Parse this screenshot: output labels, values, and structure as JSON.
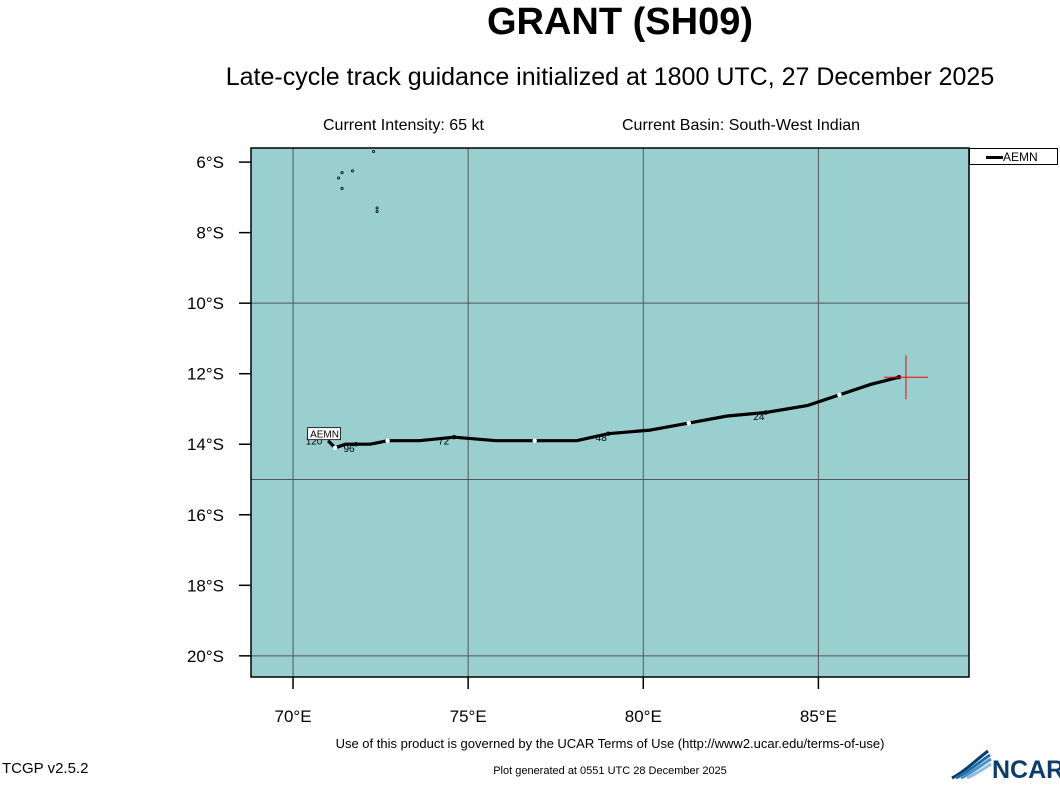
{
  "title": "GRANT (SH09)",
  "subtitle": "Late-cycle track guidance initialized at 1800 UTC, 27 December 2025",
  "current_intensity": "Current Intensity: 65 kt",
  "current_basin": "Current Basin: South-West Indian",
  "terms_text": "Use of this product is governed by the UCAR Terms of Use (http://www2.ucar.edu/terms-of-use)",
  "version_text": "TCGP v2.5.2",
  "plot_generated_text": "Plot generated at 0551 UTC  28 December 2025",
  "logo_text": "NCAR",
  "colors": {
    "ocean": "#99cfcf",
    "gridline": "#555555",
    "track": "#000000",
    "current_position": "#ff0000"
  },
  "map": {
    "lon_range": [
      68.8,
      89.3
    ],
    "lat_range": [
      -20.6,
      -5.6
    ],
    "x_ticks": [
      {
        "value": 70,
        "label": "70°E"
      },
      {
        "value": 75,
        "label": "75°E"
      },
      {
        "value": 80,
        "label": "80°E"
      },
      {
        "value": 85,
        "label": "85°E"
      }
    ],
    "y_ticks": [
      {
        "value": -6,
        "label": "6°S"
      },
      {
        "value": -8,
        "label": "8°S"
      },
      {
        "value": -10,
        "label": "10°S"
      },
      {
        "value": -12,
        "label": "12°S"
      },
      {
        "value": -14,
        "label": "14°S"
      },
      {
        "value": -16,
        "label": "16°S"
      },
      {
        "value": -18,
        "label": "18°S"
      },
      {
        "value": -20,
        "label": "20°S"
      }
    ],
    "grid_lon": [
      70,
      75,
      80,
      85
    ],
    "grid_lat": [
      -10,
      -15,
      -20
    ]
  },
  "current_position": {
    "lon": 87.5,
    "lat": -12.1
  },
  "legend": {
    "entries": [
      {
        "name": "AEMN"
      }
    ]
  },
  "tracks": [
    {
      "name": "AEMN",
      "points": [
        {
          "lon": 87.3,
          "lat": -12.1
        },
        {
          "lon": 86.5,
          "lat": -12.3
        },
        {
          "lon": 85.6,
          "lat": -12.6
        },
        {
          "lon": 84.7,
          "lat": -12.9
        },
        {
          "lon": 83.5,
          "lat": -13.1
        },
        {
          "lon": 82.4,
          "lat": -13.2
        },
        {
          "lon": 81.3,
          "lat": -13.4
        },
        {
          "lon": 80.2,
          "lat": -13.6
        },
        {
          "lon": 79.0,
          "lat": -13.7
        },
        {
          "lon": 78.1,
          "lat": -13.9
        },
        {
          "lon": 76.9,
          "lat": -13.9
        },
        {
          "lon": 75.8,
          "lat": -13.9
        },
        {
          "lon": 74.6,
          "lat": -13.8
        },
        {
          "lon": 73.6,
          "lat": -13.9
        },
        {
          "lon": 72.7,
          "lat": -13.9
        },
        {
          "lon": 72.2,
          "lat": -14.0
        },
        {
          "lon": 71.8,
          "lat": -14.0
        },
        {
          "lon": 71.5,
          "lat": -14.0
        },
        {
          "lon": 71.2,
          "lat": -14.1
        },
        {
          "lon": 71.0,
          "lat": -13.9
        }
      ],
      "point_markers": [
        {
          "lon": 87.3,
          "lat": -12.1,
          "style": "black"
        },
        {
          "lon": 85.6,
          "lat": -12.6,
          "style": "white"
        },
        {
          "lon": 83.5,
          "lat": -13.1,
          "style": "black"
        },
        {
          "lon": 81.3,
          "lat": -13.4,
          "style": "white"
        },
        {
          "lon": 79.0,
          "lat": -13.7,
          "style": "black"
        },
        {
          "lon": 76.9,
          "lat": -13.9,
          "style": "white"
        },
        {
          "lon": 74.6,
          "lat": -13.8,
          "style": "black"
        },
        {
          "lon": 72.7,
          "lat": -13.9,
          "style": "white"
        },
        {
          "lon": 71.8,
          "lat": -14.0,
          "style": "black"
        },
        {
          "lon": 71.2,
          "lat": -14.1,
          "style": "white"
        }
      ],
      "hour_labels": [
        {
          "text": "24",
          "lon": 83.3,
          "lat": -13.2
        },
        {
          "text": "48",
          "lon": 78.8,
          "lat": -13.8
        },
        {
          "text": "72",
          "lon": 74.3,
          "lat": -13.9
        },
        {
          "text": "96",
          "lon": 71.6,
          "lat": -14.1
        },
        {
          "text": "120",
          "lon": 70.6,
          "lat": -13.9
        }
      ],
      "end_label": {
        "text": "AEMN",
        "lon": 70.9,
        "lat": -13.7
      }
    }
  ],
  "islands": [
    {
      "lon": 71.4,
      "lat": -6.3
    },
    {
      "lon": 71.7,
      "lat": -6.25
    },
    {
      "lon": 71.3,
      "lat": -6.45
    },
    {
      "lon": 71.4,
      "lat": -6.75
    },
    {
      "lon": 72.4,
      "lat": -7.3
    },
    {
      "lon": 72.4,
      "lat": -7.4
    },
    {
      "lon": 72.3,
      "lat": -5.7
    }
  ]
}
